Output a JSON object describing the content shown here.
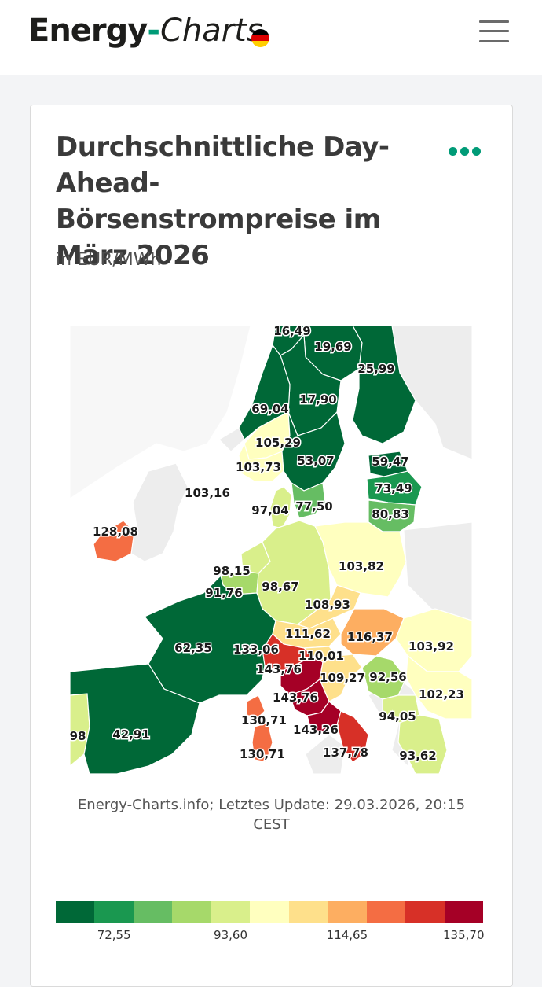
{
  "header": {
    "logo_part1": "Energy",
    "logo_dash": "-",
    "logo_part2": "Charts",
    "flag_colors": [
      "#000000",
      "#dd0000",
      "#ffce00"
    ],
    "menu_icon": "hamburger-menu-icon"
  },
  "card": {
    "title": "Durchschnittliche Day-Ahead-Börsenstrompreise im März 2026",
    "subtitle": "in EUR/MWh",
    "more_icon": "more-dots-icon",
    "caption": "Energy-Charts.info; Letztes Update: 29.03.2026, 20:15 CEST"
  },
  "map": {
    "unit": "EUR/MWh",
    "zoom_in_icon": "plus-icon",
    "zoom_out_icon": "minus-icon",
    "regions": [
      {
        "id": "NO4",
        "label": "16,49",
        "value": 16.49
      },
      {
        "id": "SE1",
        "label": "19,69",
        "value": 19.69
      },
      {
        "id": "FI",
        "label": "25,99",
        "value": 25.99
      },
      {
        "id": "SE2",
        "label": "17,90",
        "value": 17.9
      },
      {
        "id": "NO3",
        "label": "69,04",
        "value": 69.04
      },
      {
        "id": "NO5",
        "label": "105,29",
        "value": 105.29
      },
      {
        "id": "NO2",
        "label": "103,73",
        "value": 103.73
      },
      {
        "id": "SE3",
        "label": "53,07",
        "value": 53.07
      },
      {
        "id": "EE",
        "label": "59,47",
        "value": 59.47
      },
      {
        "id": "LV",
        "label": "73,49",
        "value": 73.49
      },
      {
        "id": "LT",
        "label": "80,83",
        "value": 80.83
      },
      {
        "id": "SE4",
        "label": "77,50",
        "value": 77.5
      },
      {
        "id": "DK1",
        "label": "97,04",
        "value": 97.04
      },
      {
        "id": "GB",
        "label": "103,16",
        "value": 103.16
      },
      {
        "id": "IE",
        "label": "128,08",
        "value": 128.08
      },
      {
        "id": "NL",
        "label": "98,15",
        "value": 98.15
      },
      {
        "id": "BE",
        "label": "91,76",
        "value": 91.76
      },
      {
        "id": "DE",
        "label": "98,67",
        "value": 98.67
      },
      {
        "id": "PL",
        "label": "103,82",
        "value": 103.82
      },
      {
        "id": "CZ",
        "label": "108,93",
        "value": 108.93
      },
      {
        "id": "AT",
        "label": "111,62",
        "value": 111.62
      },
      {
        "id": "HU",
        "label": "116,37",
        "value": 116.37
      },
      {
        "id": "RO",
        "label": "103,92",
        "value": 103.92
      },
      {
        "id": "FR",
        "label": "62,35",
        "value": 62.35
      },
      {
        "id": "IT-North",
        "label": "133,06",
        "value": 133.06
      },
      {
        "id": "SI",
        "label": "110,01",
        "value": 110.01
      },
      {
        "id": "IT-CNorth",
        "label": "143,76",
        "value": 143.76
      },
      {
        "id": "HR",
        "label": "109,27",
        "value": 109.27
      },
      {
        "id": "RS",
        "label": "92,56",
        "value": 92.56
      },
      {
        "id": "IT-CSouth",
        "label": "143,76",
        "value": 143.76
      },
      {
        "id": "BG",
        "label": "102,23",
        "value": 102.23
      },
      {
        "id": "IT-Sardinia-N",
        "label": "130,71",
        "value": 130.71
      },
      {
        "id": "IT-South",
        "label": "143,26",
        "value": 143.26
      },
      {
        "id": "MK",
        "label": "94,05",
        "value": 94.05
      },
      {
        "id": "PT",
        "label": "98",
        "value": 98
      },
      {
        "id": "ES",
        "label": "42,91",
        "value": 42.91
      },
      {
        "id": "IT-Sardinia",
        "label": "130,71",
        "value": 130.71
      },
      {
        "id": "IT-Calabria",
        "label": "137,78",
        "value": 137.78
      },
      {
        "id": "GR",
        "label": "93,62",
        "value": 93.62
      }
    ]
  },
  "legend": {
    "colors": [
      "#006837",
      "#1a9850",
      "#66bd63",
      "#a6d96a",
      "#d9ef8b",
      "#ffffbf",
      "#fee08b",
      "#fdae61",
      "#f46d43",
      "#d73027",
      "#a50026"
    ],
    "ticks": [
      "72,55",
      "93,60",
      "114,65",
      "135,70"
    ]
  }
}
